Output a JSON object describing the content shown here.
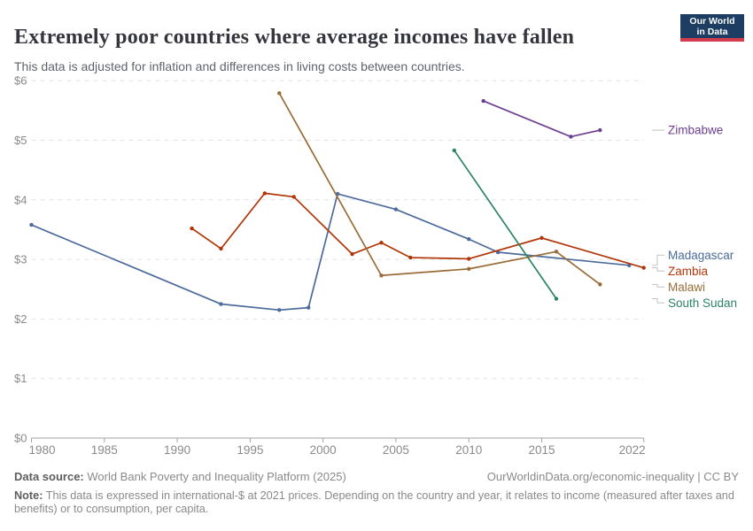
{
  "header": {
    "title": "Extremely poor countries where average incomes have fallen",
    "subtitle": "This data is adjusted for inflation and differences in living costs between countries.",
    "logo": {
      "line1": "Our World",
      "line2": "in Data",
      "bg_color": "#1d3d63",
      "bar_color": "#d13d4d"
    }
  },
  "chart_data": {
    "type": "line",
    "title": "Extremely poor countries where average incomes have fallen",
    "xlabel": "",
    "ylabel": "",
    "unit_prefix": "$",
    "xlim": [
      1980,
      2022
    ],
    "ylim": [
      0,
      6
    ],
    "grid": "horizontal-dashed",
    "markers": true,
    "legend_position": "right-edge-labels",
    "x_ticks": [
      1980,
      1985,
      1990,
      1995,
      2000,
      2005,
      2010,
      2015,
      2022
    ],
    "y_ticks": [
      "$0",
      "$1",
      "$2",
      "$3",
      "$4",
      "$5",
      "$6"
    ],
    "series": [
      {
        "name": "Madagascar",
        "color": "#4C6A9C",
        "points": [
          [
            1980,
            3.58
          ],
          [
            1993,
            2.25
          ],
          [
            1997,
            2.15
          ],
          [
            1999,
            2.19
          ],
          [
            2001,
            4.1
          ],
          [
            2005,
            3.84
          ],
          [
            2010,
            3.34
          ],
          [
            2012,
            3.12
          ],
          [
            2021,
            2.9
          ]
        ]
      },
      {
        "name": "Zambia",
        "color": "#B13507",
        "points": [
          [
            1991,
            3.52
          ],
          [
            1993,
            3.18
          ],
          [
            1996,
            4.11
          ],
          [
            1998,
            4.05
          ],
          [
            2002,
            3.09
          ],
          [
            2004,
            3.28
          ],
          [
            2006,
            3.03
          ],
          [
            2010,
            3.01
          ],
          [
            2015,
            3.36
          ],
          [
            2022,
            2.86
          ]
        ]
      },
      {
        "name": "Malawi",
        "color": "#996D39",
        "points": [
          [
            1997,
            5.79
          ],
          [
            2004,
            2.73
          ],
          [
            2010,
            2.84
          ],
          [
            2016,
            3.13
          ],
          [
            2019,
            2.58
          ]
        ]
      },
      {
        "name": "South Sudan",
        "color": "#2C8465",
        "points": [
          [
            2009,
            4.83
          ],
          [
            2016,
            2.34
          ]
        ]
      },
      {
        "name": "Zimbabwe",
        "color": "#6D3E91",
        "points": [
          [
            2011,
            5.66
          ],
          [
            2017,
            5.06
          ],
          [
            2019,
            5.17
          ]
        ]
      }
    ],
    "style": {
      "gridline_color": "#e2e2e2",
      "axis_color": "#a3a3a3",
      "tick_label_color": "#8a8a8a"
    }
  },
  "footer": {
    "source_label": "Data source:",
    "source_text": " World Bank Poverty and Inequality Platform (2025)",
    "link_text": "OurWorldinData.org/economic-inequality | CC BY",
    "note_label": "Note:",
    "note_text": " This data is expressed in international-$ at 2021 prices. Depending on the country and year, it relates to income (measured after taxes and benefits) or to consumption, per capita."
  }
}
